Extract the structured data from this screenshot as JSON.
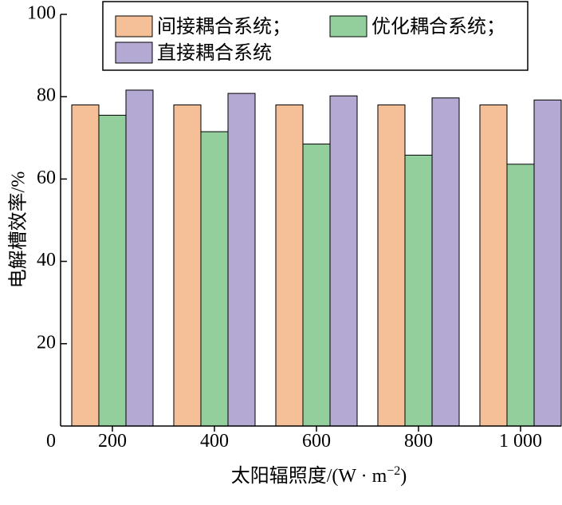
{
  "chart_data": {
    "type": "bar",
    "categories": [
      "200",
      "400",
      "600",
      "800",
      "1 000"
    ],
    "series": [
      {
        "name": "间接耦合系统；",
        "color": "#f5bf98",
        "values": [
          78.0,
          78.0,
          78.0,
          78.0,
          78.0
        ]
      },
      {
        "name": "优化耦合系统；",
        "color": "#93cf9d",
        "values": [
          75.5,
          71.5,
          68.5,
          65.8,
          63.6
        ]
      },
      {
        "name": "直接耦合系统",
        "color": "#b3a9d3",
        "values": [
          81.6,
          80.8,
          80.2,
          79.7,
          79.2
        ]
      }
    ],
    "xlabel": "太阳辐照度/(W · m",
    "xlabel_sup": "−2",
    "xlabel_end": ")",
    "ylabel": "电解槽效率/%",
    "ylim": [
      0,
      100
    ],
    "yticks": [
      "0",
      "20",
      "40",
      "60",
      "80",
      "100"
    ],
    "legend_position": "top",
    "grid": false
  }
}
